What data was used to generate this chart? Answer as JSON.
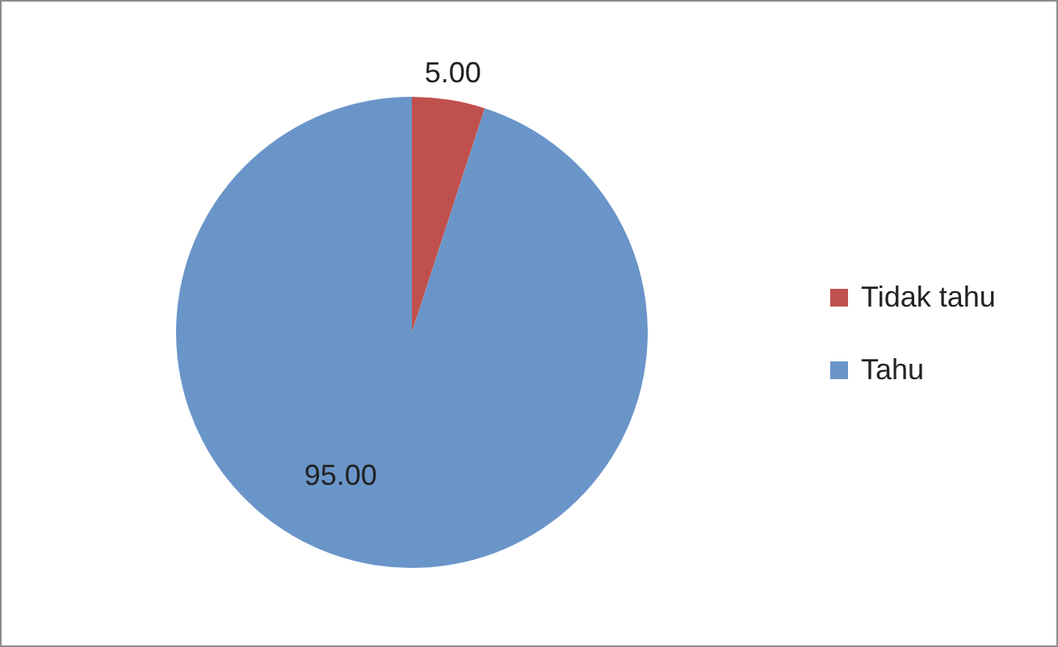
{
  "chart_data": {
    "type": "pie",
    "categories": [
      "Tidak tahu",
      "Tahu"
    ],
    "values": [
      5,
      95
    ],
    "colors": [
      "#c0504d",
      "#6a95c9"
    ],
    "value_labels": [
      "5.00",
      "95.00"
    ],
    "legend": "right"
  }
}
